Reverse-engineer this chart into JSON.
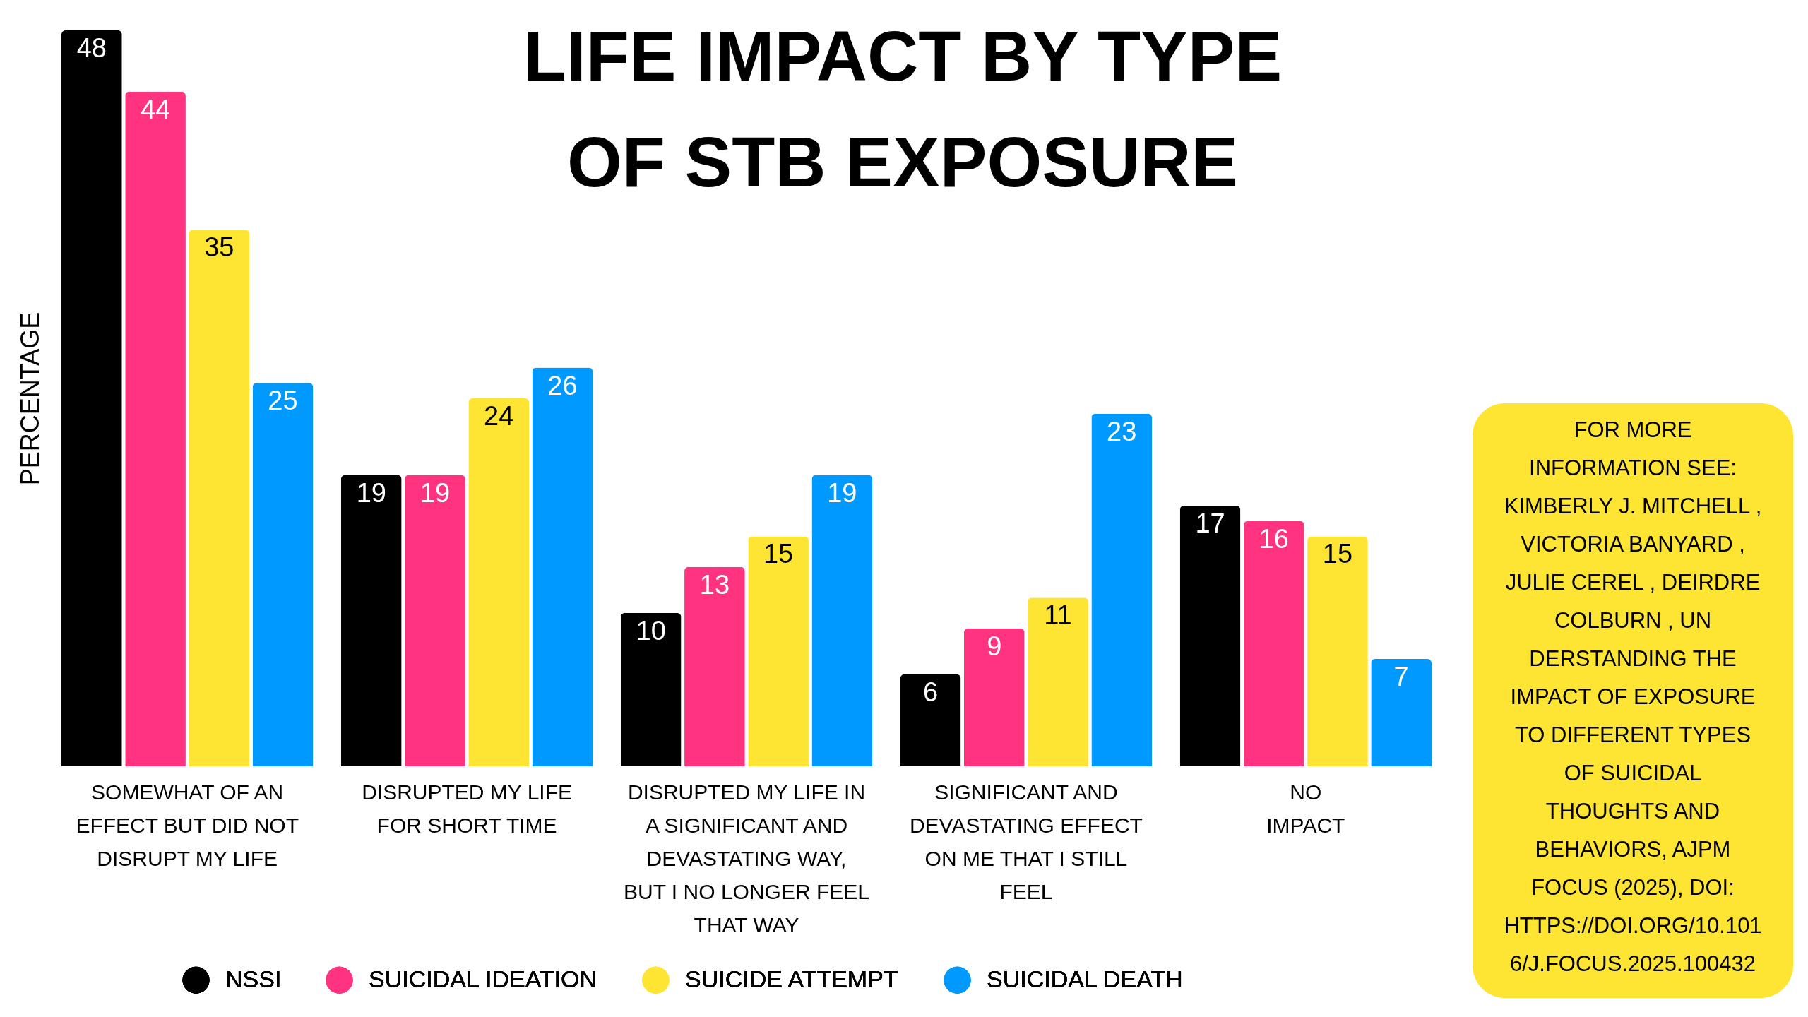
{
  "chart_data": {
    "type": "bar",
    "title": "LIFE IMPACT BY TYPE\nOF STB EXPOSURE",
    "ylabel": "PERCENTAGE",
    "categories": [
      "SOMEWHAT OF AN\nEFFECT BUT DID NOT\nDISRUPT MY LIFE",
      "DISRUPTED MY LIFE\nFOR SHORT TIME",
      "DISRUPTED MY LIFE IN\nA SIGNIFICANT AND\nDEVASTATING WAY,\nBUT I NO LONGER FEEL\nTHAT WAY",
      "SIGNIFICANT AND\nDEVASTATING EFFECT\nON ME THAT I STILL\nFEEL",
      "NO\nIMPACT"
    ],
    "series": [
      {
        "name": "NSSI",
        "color": "#000000",
        "values": [
          48,
          19,
          10,
          6,
          17
        ]
      },
      {
        "name": "SUICIDAL IDEATION",
        "color": "#ff3380",
        "values": [
          44,
          19,
          13,
          9,
          16
        ]
      },
      {
        "name": "SUICIDE ATTEMPT",
        "color": "#fee433",
        "values": [
          35,
          24,
          15,
          11,
          15
        ]
      },
      {
        "name": "SUICIDAL DEATH",
        "color": "#0099ff",
        "values": [
          25,
          26,
          19,
          23,
          7
        ]
      }
    ],
    "data_labels": true,
    "legend": "bottom",
    "tick_labels": "x",
    "annotations": [
      "FOR MORE\nINFORMATION SEE:\nKIMBERLY J. MITCHELL ,\nVICTORIA BANYARD ,\nJULIE CEREL , DEIRDRE\nCOLBURN , UN\nDERSTANDING THE\nIMPACT OF EXPOSURE\nTO DIFFERENT TYPES\nOF SUICIDAL\nTHOUGHTS AND\nBEHAVIORS, AJPM\nFOCUS (2025), DOI:\nHTTPS://DOI.ORG/10.101\n6/J.FOCUS.2025.100432"
    ]
  }
}
